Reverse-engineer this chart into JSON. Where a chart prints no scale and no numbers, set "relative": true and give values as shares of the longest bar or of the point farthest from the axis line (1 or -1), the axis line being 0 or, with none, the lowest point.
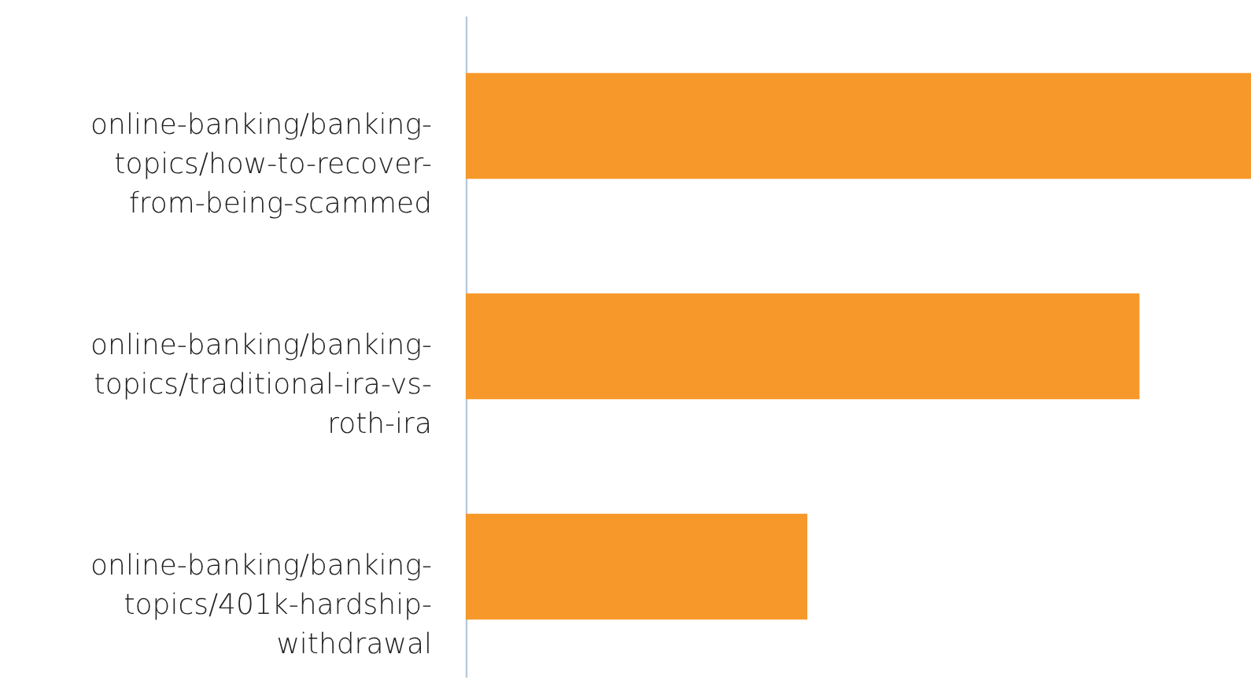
{
  "chart_data": {
    "type": "bar",
    "orientation": "horizontal",
    "relative": true,
    "categories": [
      "online-banking/banking-topics/how-to-recover-from-being-scammed",
      "online-banking/banking-topics/traditional-ira-vs-roth-ira",
      "online-banking/banking-topics/401k-hardship-withdrawal"
    ],
    "values": [
      1,
      0.858,
      0.435
    ],
    "color": "#f7992a"
  }
}
